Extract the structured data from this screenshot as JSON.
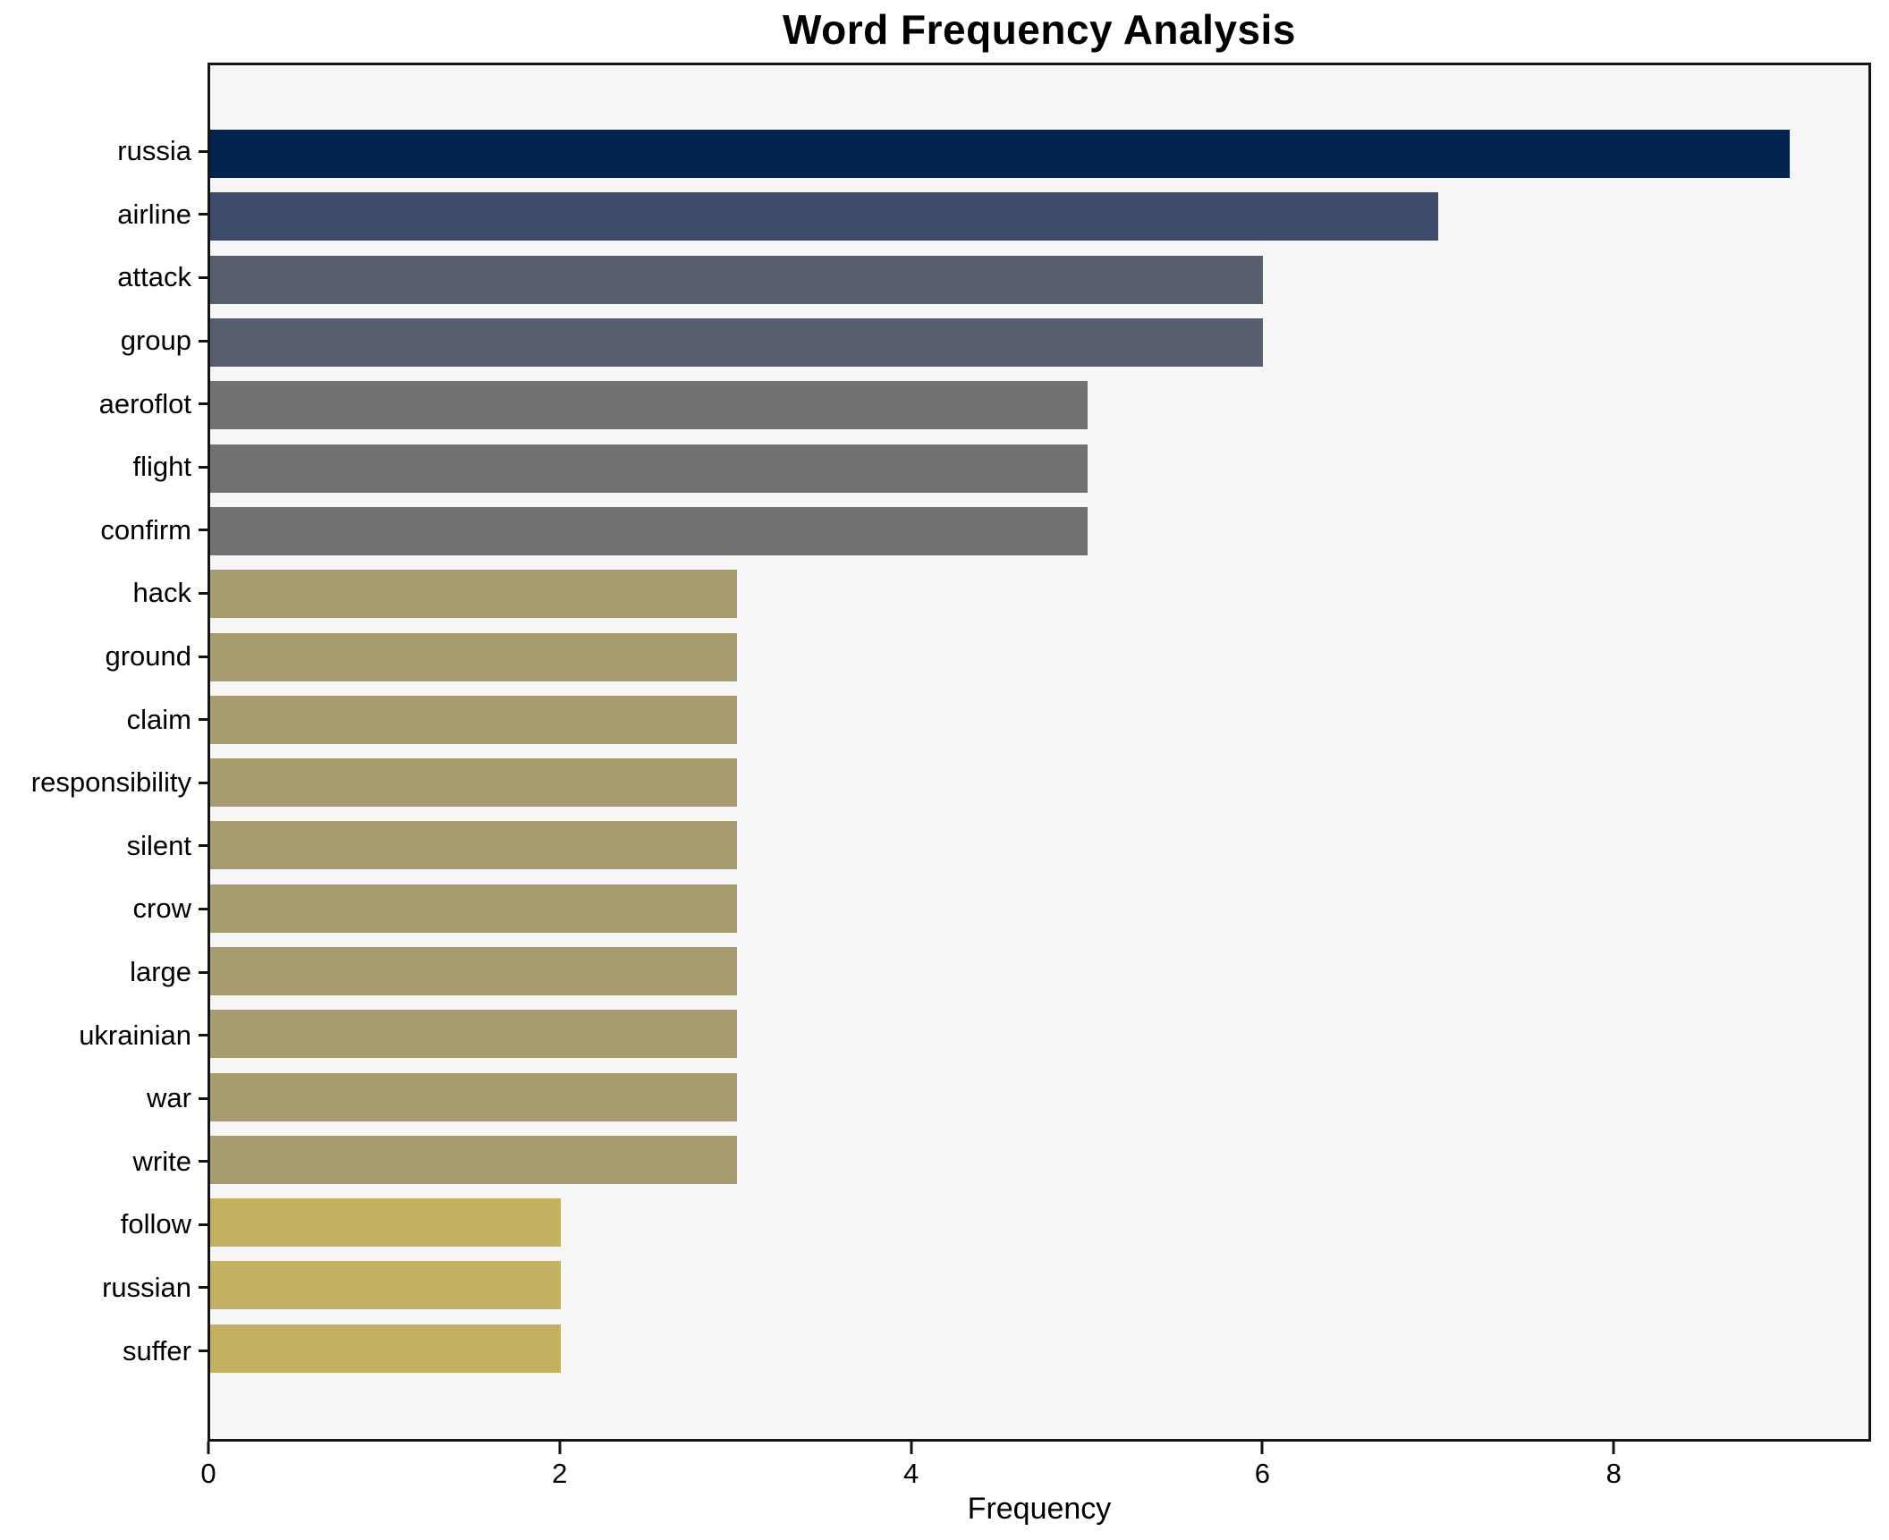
{
  "title": "Word Frequency Analysis",
  "xlabel": "Frequency",
  "colors": {
    "fig_bg": "#ffffff",
    "plot_bg": "#f7f6f7",
    "spine": "#141414",
    "value_9": "#022250",
    "value_7": "#3d4a6c",
    "value_6": "#565d6e",
    "value_5": "#6f7173",
    "value_3": "#a69c6f",
    "value_2": "#c2b162"
  },
  "chart_data": {
    "type": "bar",
    "orientation": "horizontal",
    "title": "Word Frequency Analysis",
    "xlabel": "Frequency",
    "ylabel": "",
    "categories": [
      "russia",
      "airline",
      "attack",
      "group",
      "aeroflot",
      "flight",
      "confirm",
      "hack",
      "ground",
      "claim",
      "responsibility",
      "silent",
      "crow",
      "large",
      "ukrainian",
      "war",
      "write",
      "follow",
      "russian",
      "suffer"
    ],
    "values": [
      9,
      7,
      6,
      6,
      5,
      5,
      5,
      3,
      3,
      3,
      3,
      3,
      3,
      3,
      3,
      3,
      3,
      2,
      2,
      2
    ],
    "bar_colors": [
      "#022250",
      "#3d4a6c",
      "#565d6e",
      "#565d6e",
      "#6f7173",
      "#6f7173",
      "#6f7173",
      "#a69c6f",
      "#a69c6f",
      "#a69c6f",
      "#a69c6f",
      "#a69c6f",
      "#a69c6f",
      "#a69c6f",
      "#a69c6f",
      "#a69c6f",
      "#a69c6f",
      "#c2b162",
      "#c2b162",
      "#c2b162"
    ],
    "xlim": [
      0,
      9.45
    ],
    "xticks": [
      0,
      2,
      4,
      6,
      8
    ],
    "grid": false,
    "legend": false
  }
}
